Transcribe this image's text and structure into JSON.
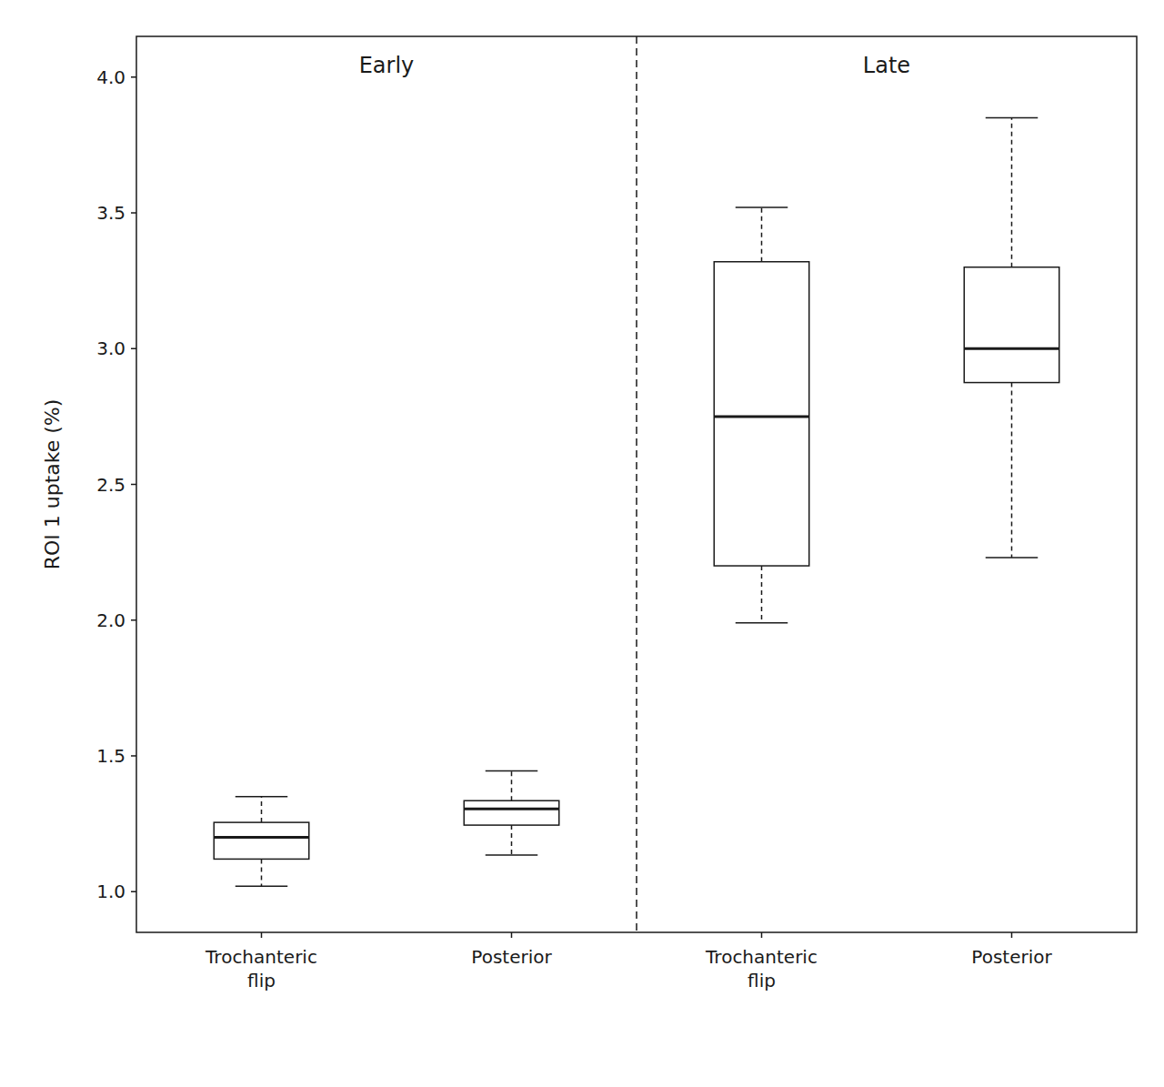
{
  "chart_data": {
    "type": "box",
    "ylabel": "ROI 1 uptake (%)",
    "ylim": [
      0.85,
      4.15
    ],
    "yticks": [
      {
        "value": 1.0,
        "label": "1.0"
      },
      1.5,
      {
        "value": 2.0,
        "label": "2.0"
      },
      2.5,
      {
        "value": 3.0,
        "label": "3.0"
      },
      3.5,
      {
        "value": 4.0,
        "label": "4.0"
      }
    ],
    "categories": [
      "Trochanteric\nflip",
      "Posterior",
      "Trochanteric\nflip",
      "Posterior"
    ],
    "annotations": [
      "Early",
      "Late"
    ],
    "boxes": [
      {
        "whislo": 1.02,
        "q1": 1.12,
        "med": 1.2,
        "q3": 1.255,
        "whishi": 1.35,
        "fliers": []
      },
      {
        "whislo": 1.135,
        "q1": 1.245,
        "med": 1.305,
        "q3": 1.335,
        "whishi": 1.445,
        "fliers": []
      },
      {
        "whislo": 1.99,
        "q1": 2.2,
        "med": 2.75,
        "q3": 3.32,
        "whishi": 3.52,
        "fliers": []
      },
      {
        "whislo": 2.23,
        "q1": 2.875,
        "med": 3.0,
        "q3": 3.3,
        "whishi": 3.85,
        "fliers": []
      }
    ],
    "color": "#1a1a1a",
    "grid": false
  }
}
